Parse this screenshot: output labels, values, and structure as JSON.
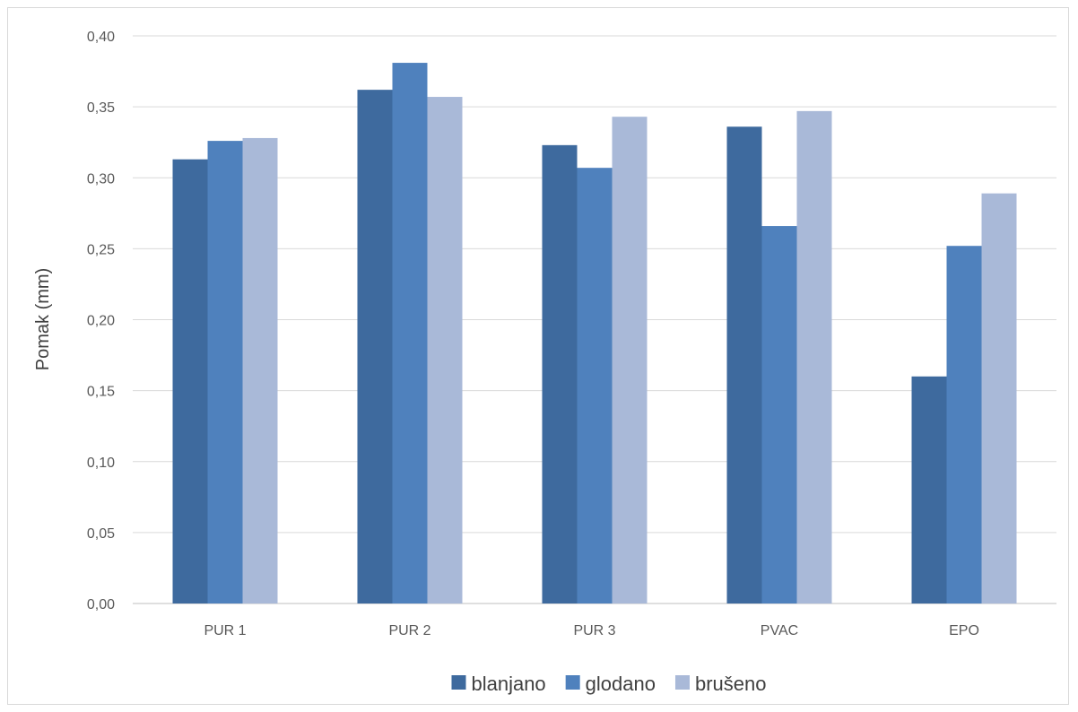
{
  "chart_data": {
    "type": "bar",
    "title": "",
    "xlabel": "",
    "ylabel": "Pomak (mm)",
    "categories": [
      "PUR 1",
      "PUR 2",
      "PUR 3",
      "PVAC",
      "EPO"
    ],
    "series": [
      {
        "name": "blanjano",
        "color": "#3e6a9e",
        "values": [
          0.313,
          0.362,
          0.323,
          0.336,
          0.16
        ]
      },
      {
        "name": "glodano",
        "color": "#4f81bd",
        "values": [
          0.326,
          0.381,
          0.307,
          0.266,
          0.252
        ]
      },
      {
        "name": "brušeno",
        "color": "#a9b9d8",
        "values": [
          0.328,
          0.357,
          0.343,
          0.347,
          0.289
        ]
      }
    ],
    "ylim": [
      0,
      0.4
    ],
    "yticks": [
      "0,00",
      "0,05",
      "0,10",
      "0,15",
      "0,20",
      "0,25",
      "0,30",
      "0,35",
      "0,40"
    ],
    "grid": true,
    "legend_position": "bottom"
  }
}
